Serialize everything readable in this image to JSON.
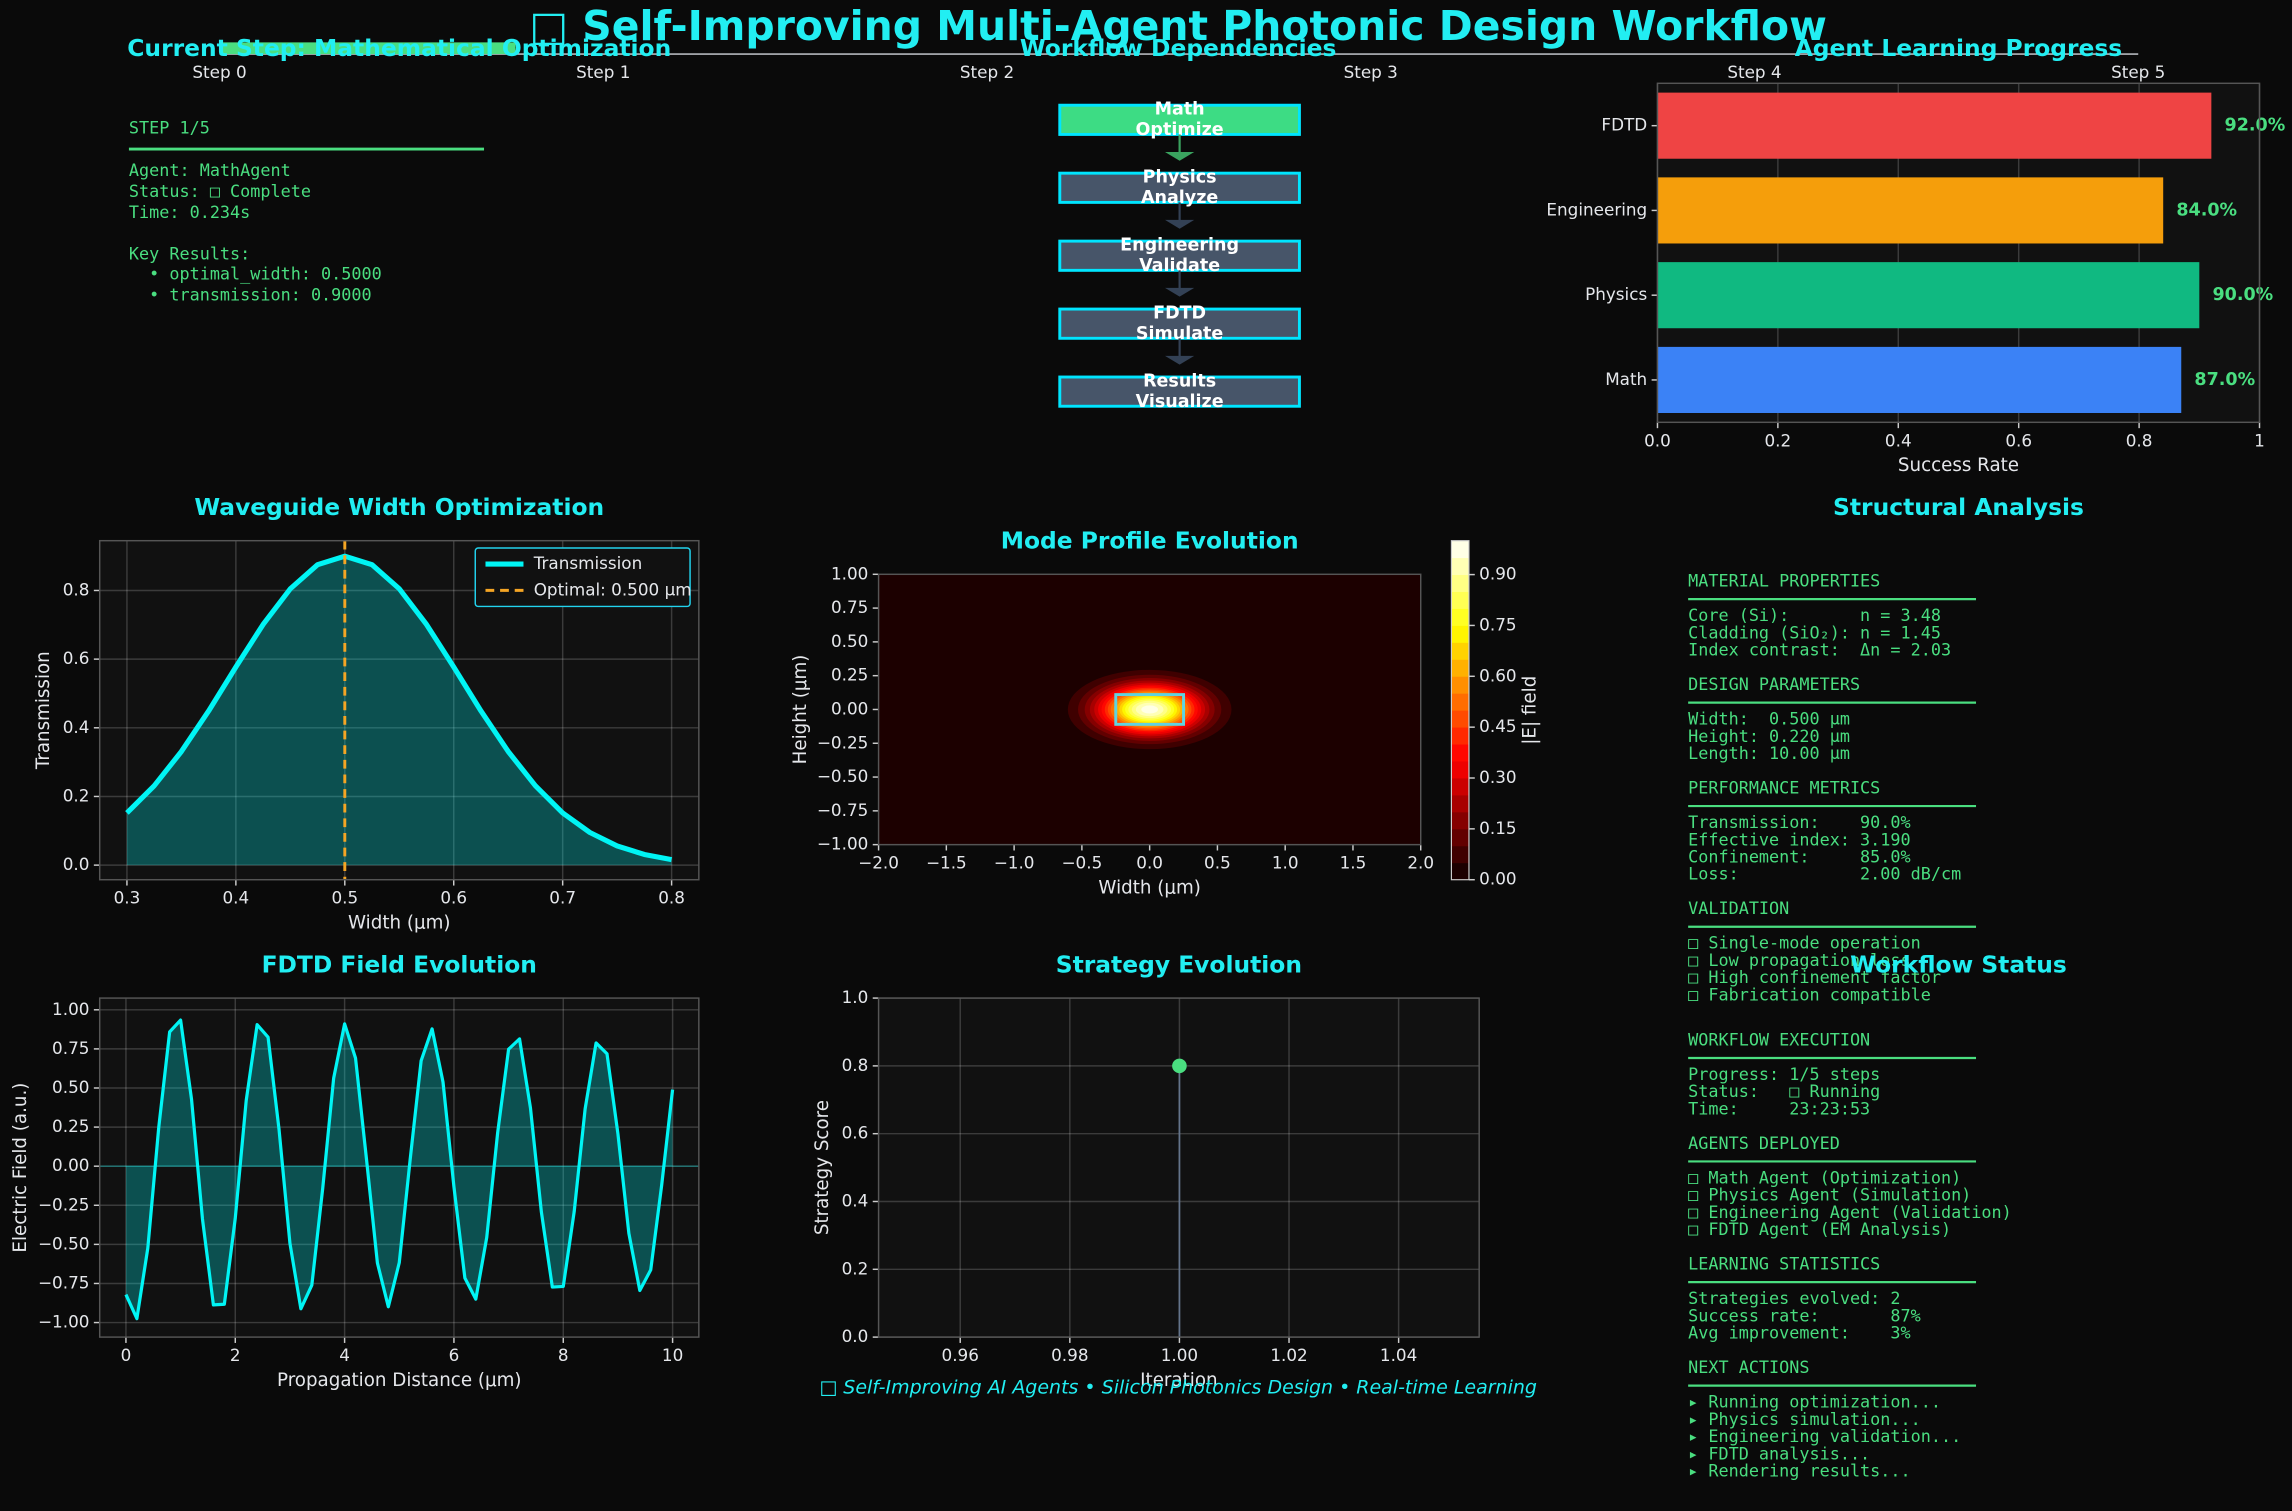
{
  "title": "□ Self-Improving Multi-Agent Photonic Design Workflow",
  "progress": {
    "steps": [
      "Step 0",
      "Step 1",
      "Step 2",
      "Step 3",
      "Step 4",
      "Step 5"
    ],
    "current": 1,
    "color": "#4ade80"
  },
  "current_step": {
    "title": "Current Step: Mathematical Optimization",
    "header": "STEP 1/5",
    "details": [
      "Agent: MathAgent",
      "Status: □ Complete",
      "Time: 0.234s"
    ],
    "results_title": "Key Results:",
    "results": [
      "  • optimal_width: 0.5000",
      "  • transmission: 0.9000"
    ]
  },
  "workflow": {
    "title": "Workflow Dependencies",
    "nodes": [
      {
        "name": "Math",
        "action": "Optimize",
        "color": "#3ddc84"
      },
      {
        "name": "Physics",
        "action": "Analyze",
        "color": "#475569"
      },
      {
        "name": "Engineering",
        "action": "Validate",
        "color": "#475569"
      },
      {
        "name": "FDTD",
        "action": "Simulate",
        "color": "#475569"
      },
      {
        "name": "Results",
        "action": "Visualize",
        "color": "#475569"
      }
    ]
  },
  "chart_data": [
    {
      "type": "barh",
      "title": "Agent Learning Progress",
      "categories": [
        "Math",
        "Physics",
        "Engineering",
        "FDTD"
      ],
      "values": [
        0.87,
        0.9,
        0.84,
        0.92
      ],
      "value_labels": [
        "87.0%",
        "90.0%",
        "84.0%",
        "92.0%"
      ],
      "colors": [
        "#3b82f6",
        "#10b981",
        "#f59e0b",
        "#ef4444"
      ],
      "xlim": [
        0,
        1
      ],
      "xticks": [
        {
          "value": 0,
          "label": "0.0"
        },
        0.2,
        0.4,
        0.6,
        0.8,
        1
      ],
      "xlabel": "Success Rate",
      "grid": true
    },
    {
      "type": "line",
      "title": "Waveguide Width Optimization",
      "x": [
        0.3,
        0.325,
        0.35,
        0.375,
        0.4,
        0.425,
        0.45,
        0.475,
        0.5,
        0.525,
        0.55,
        0.575,
        0.6,
        0.625,
        0.65,
        0.675,
        0.7,
        0.725,
        0.75,
        0.775,
        0.8
      ],
      "series": [
        {
          "name": "Transmission",
          "color": "#00f5f5",
          "values": [
            0.152,
            0.231,
            0.331,
            0.449,
            0.577,
            0.701,
            0.805,
            0.875,
            0.9,
            0.875,
            0.805,
            0.701,
            0.577,
            0.449,
            0.331,
            0.231,
            0.152,
            0.095,
            0.056,
            0.031,
            0.016
          ]
        }
      ],
      "markers": [
        {
          "name": "Optimal: 0.500 μm",
          "x": 0.5,
          "color": "#f5a524"
        }
      ],
      "xlim": [
        0.275,
        0.825
      ],
      "xticks": [
        0.3,
        0.4,
        0.5,
        0.6,
        0.7,
        0.8
      ],
      "ylim": [
        -0.0425,
        0.945
      ],
      "yticks": [
        {
          "value": 0,
          "label": "0.0"
        },
        0.2,
        0.4,
        0.6,
        0.8
      ],
      "xlabel": "Width (μm)",
      "ylabel": "Transmission",
      "legend": "upper right",
      "grid": true,
      "fill": true
    },
    {
      "type": "contour",
      "title": "Mode Profile Evolution",
      "xlim": [
        -2,
        2
      ],
      "ylim": [
        -1,
        1
      ],
      "xticks": [
        {
          "value": -2,
          "label": "−2.0"
        },
        {
          "value": -1.5,
          "label": "−1.5"
        },
        {
          "value": -1,
          "label": "−1.0"
        },
        {
          "value": -0.5,
          "label": "−0.5"
        },
        {
          "value": 0,
          "label": "0.0"
        },
        0.5,
        {
          "value": 1,
          "label": "1.0"
        },
        1.5,
        {
          "value": 2,
          "label": "2.0"
        }
      ],
      "yticks": [
        {
          "value": -1,
          "label": "−1.00"
        },
        {
          "value": -0.75,
          "label": "−0.75"
        },
        {
          "value": -0.5,
          "label": "−0.50"
        },
        {
          "value": -0.25,
          "label": "−0.25"
        },
        {
          "value": 0,
          "label": "0.00"
        },
        0.25,
        {
          "value": 0.5,
          "label": "0.50"
        },
        0.75,
        {
          "value": 1,
          "label": "1.00"
        }
      ],
      "xlabel": "Width (μm)",
      "ylabel": "Height (μm)",
      "levels": [
        0,
        0.05,
        0.1,
        0.15,
        0.2,
        0.25,
        0.3,
        0.35,
        0.4,
        0.45,
        0.5,
        0.55,
        0.6,
        0.65,
        0.7,
        0.75,
        0.8,
        0.85,
        0.9,
        0.95,
        1
      ],
      "field": {
        "peak": 0.98,
        "sigma_x": 0.35,
        "sigma_y": 0.17
      },
      "core": {
        "width": 0.5,
        "height": 0.22,
        "color": "#5fd3e0"
      },
      "colorbar": {
        "label": "|E| field",
        "lim": [
          0,
          1
        ],
        "ticks": [
          {
            "value": 0,
            "label": "0.00"
          },
          0.15,
          {
            "value": 0.3,
            "label": "0.30"
          },
          0.45,
          {
            "value": 0.6,
            "label": "0.60"
          },
          0.75,
          {
            "value": 0.9,
            "label": "0.90"
          }
        ]
      }
    },
    {
      "type": "line",
      "title": "FDTD Field Evolution",
      "x": [
        0,
        0.2,
        0.4,
        0.6,
        0.8,
        1,
        1.2,
        1.4,
        1.6,
        1.8,
        2,
        2.2,
        2.4,
        2.6,
        2.8,
        3,
        3.2,
        3.4,
        3.6,
        3.8,
        4,
        4.2,
        4.4,
        4.6,
        4.8,
        5,
        5.2,
        5.4,
        5.6,
        5.8,
        6,
        6.2,
        6.4,
        6.6,
        6.8,
        7,
        7.2,
        7.4,
        7.6,
        7.8,
        8,
        8.2,
        8.4,
        8.6,
        8.8,
        9,
        9.2,
        9.4,
        9.6,
        9.8,
        10
      ],
      "series": [
        {
          "color": "#00f5f5",
          "values": [
            -0.821,
            -0.975,
            -0.524,
            0.247,
            0.859,
            0.934,
            0.427,
            -0.338,
            -0.887,
            -0.883,
            -0.333,
            0.42,
            0.905,
            0.825,
            0.237,
            -0.493,
            -0.912,
            -0.761,
            -0.14,
            0.563,
            0.91,
            0.691,
            0.046,
            -0.619,
            -0.899,
            -0.617,
            0.045,
            0.674,
            0.878,
            0.538,
            -0.132,
            -0.715,
            -0.85,
            -0.456,
            0.215,
            0.748,
            0.814,
            0.372,
            -0.294,
            -0.773,
            -0.769,
            -0.29,
            0.366,
            0.788,
            0.719,
            0.206,
            -0.429,
            -0.795,
            -0.663,
            -0.122,
            0.49
          ]
        }
      ],
      "xlim": [
        -0.48,
        10.48
      ],
      "xticks": [
        0,
        2,
        4,
        6,
        8,
        10
      ],
      "ylim": [
        -1.093,
        1.075
      ],
      "yticks": [
        {
          "value": -1,
          "label": "−1.00"
        },
        {
          "value": -0.75,
          "label": "−0.75"
        },
        {
          "value": -0.5,
          "label": "−0.50"
        },
        {
          "value": -0.25,
          "label": "−0.25"
        },
        {
          "value": 0,
          "label": "0.00"
        },
        0.25,
        {
          "value": 0.5,
          "label": "0.50"
        },
        0.75,
        {
          "value": 1,
          "label": "1.00"
        }
      ],
      "xlabel": "Propagation Distance (μm)",
      "ylabel": "Electric Field (a.u.)",
      "grid": true,
      "fill": true,
      "zero_line": true
    },
    {
      "type": "scatter",
      "title": "Strategy Evolution",
      "x": [
        1
      ],
      "values": [
        0.8
      ],
      "color": "#4ade80",
      "stem": true,
      "xlim": [
        0.9451,
        1.0547
      ],
      "xticks": [
        0.96,
        0.98,
        {
          "value": 1,
          "label": "1.00"
        },
        1.02,
        1.04
      ],
      "ylim": [
        0,
        1
      ],
      "yticks": [
        {
          "value": 0,
          "label": "0.0"
        },
        0.2,
        0.4,
        0.6,
        0.8,
        {
          "value": 1,
          "label": "1.0"
        }
      ],
      "xlabel": "Iteration",
      "ylabel": "Strategy Score",
      "grid": true
    }
  ],
  "structural": {
    "title": "Structural Analysis",
    "sections": [
      {
        "heading": "MATERIAL PROPERTIES",
        "lines": [
          "Core (Si):       n = 3.48",
          "Cladding (SiO₂): n = 1.45",
          "Index contrast:  Δn = 2.03"
        ]
      },
      {
        "heading": "DESIGN PARAMETERS",
        "lines": [
          "Width:  0.500 μm",
          "Height: 0.220 μm",
          "Length: 10.00 μm"
        ]
      },
      {
        "heading": "PERFORMANCE METRICS",
        "lines": [
          "Transmission:    90.0%",
          "Effective index: 3.190",
          "Confinement:     85.0%",
          "Loss:            2.00 dB/cm"
        ]
      },
      {
        "heading": "VALIDATION",
        "lines": [
          "□ Single-mode operation",
          "□ Low propagation loss",
          "□ High confinement factor",
          "□ Fabrication compatible"
        ]
      }
    ]
  },
  "status": {
    "title": "Workflow Status",
    "sections": [
      {
        "heading": "WORKFLOW EXECUTION",
        "lines": [
          "Progress: 1/5 steps",
          "Status:   □ Running",
          "Time:     23:23:53"
        ]
      },
      {
        "heading": "AGENTS DEPLOYED",
        "lines": [
          "□ Math Agent (Optimization)",
          "□ Physics Agent (Simulation)",
          "□ Engineering Agent (Validation)",
          "□ FDTD Agent (EM Analysis)"
        ]
      },
      {
        "heading": "LEARNING STATISTICS",
        "lines": [
          "Strategies evolved: 2",
          "Success rate:       87%",
          "Avg improvement:    3%"
        ]
      },
      {
        "heading": "NEXT ACTIONS",
        "lines": [
          "▸ Running optimization...",
          "▸ Physics simulation...",
          "▸ Engineering validation...",
          "▸ FDTD analysis...",
          "▸ Rendering results..."
        ]
      }
    ]
  },
  "footer": "□ Self-Improving AI Agents • Silicon Photonics Design • Real-time Learning"
}
